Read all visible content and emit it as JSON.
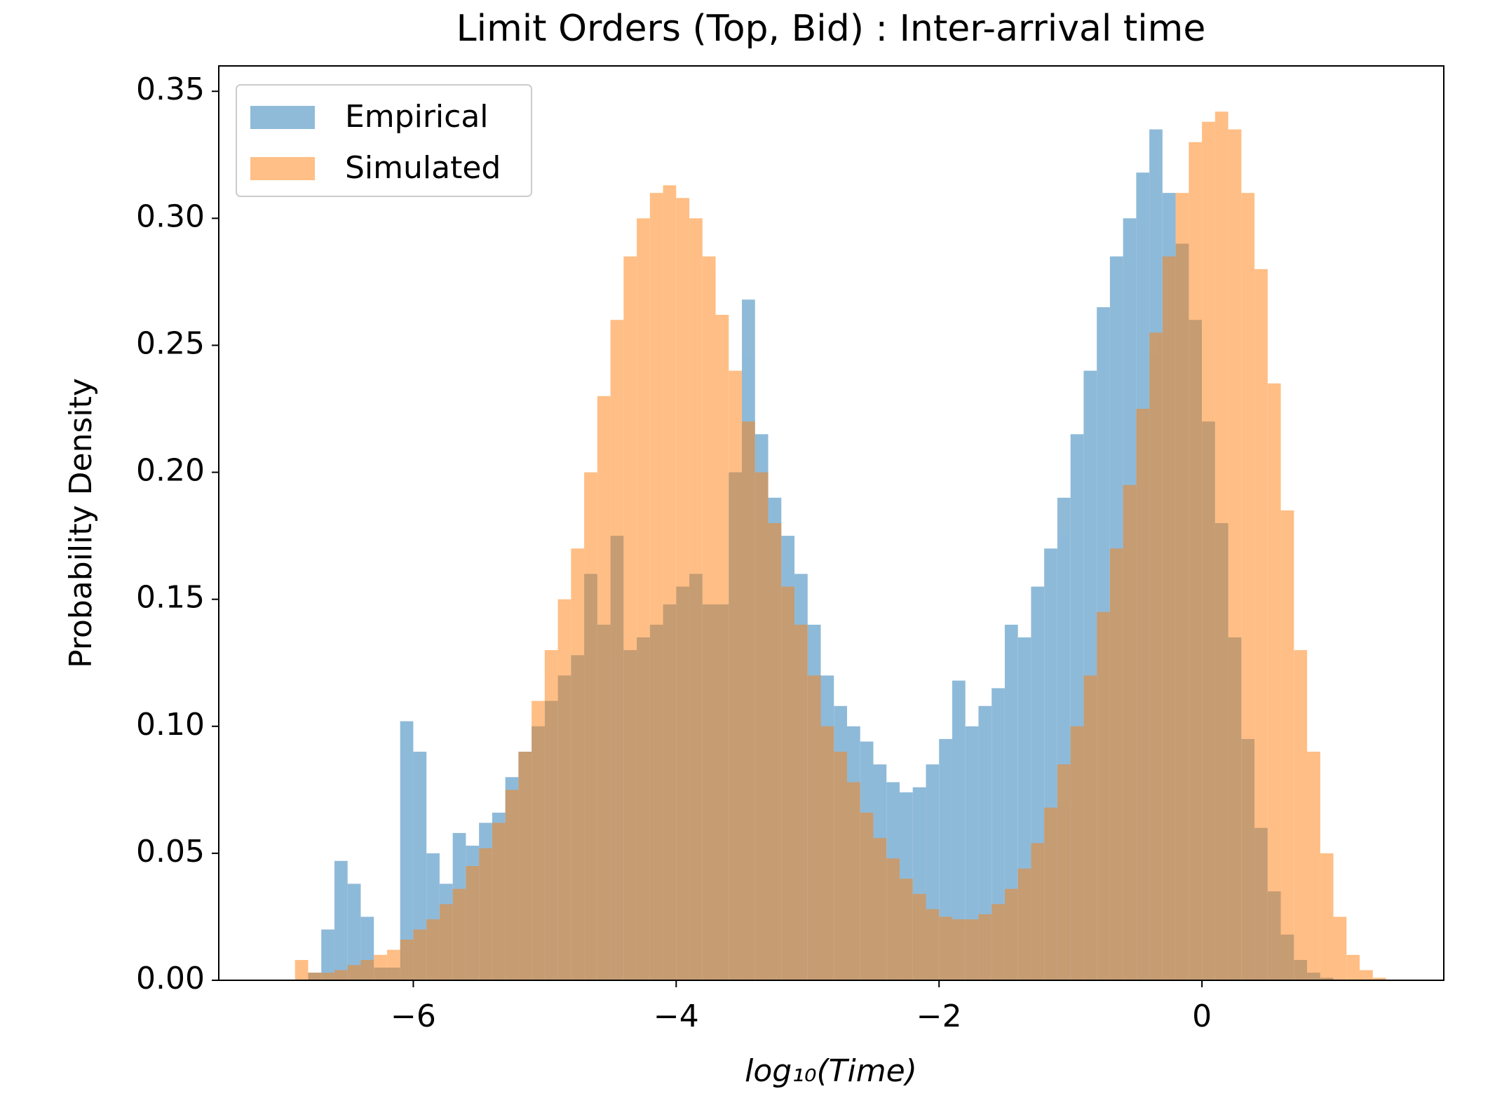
{
  "chart_data": {
    "type": "histogram",
    "title": "Limit Orders (Top, Bid) : Inter-arrival time",
    "x_label": "log₁₀(Time)",
    "y_label": "Probability Density",
    "bins": [
      -7.0,
      -6.9,
      -6.8,
      -6.7,
      -6.6,
      -6.5,
      -6.4,
      -6.3,
      -6.2,
      -6.1,
      -6.0,
      -5.9,
      -5.8,
      -5.7,
      -5.6,
      -5.5,
      -5.4,
      -5.3,
      -5.2,
      -5.1,
      -5.0,
      -4.9,
      -4.8,
      -4.7,
      -4.6,
      -4.5,
      -4.4,
      -4.3,
      -4.2,
      -4.1,
      -4.0,
      -3.9,
      -3.8,
      -3.7,
      -3.6,
      -3.5,
      -3.4,
      -3.3,
      -3.2,
      -3.1,
      -3.0,
      -2.9,
      -2.8,
      -2.7,
      -2.6,
      -2.5,
      -2.4,
      -2.3,
      -2.2,
      -2.1,
      -2.0,
      -1.9,
      -1.8,
      -1.7,
      -1.6,
      -1.5,
      -1.4,
      -1.3,
      -1.2,
      -1.1,
      -1.0,
      -0.9,
      -0.8,
      -0.7,
      -0.6,
      -0.5,
      -0.4,
      -0.3,
      -0.2,
      -0.1,
      0.0,
      0.1,
      0.2,
      0.3,
      0.4,
      0.5,
      0.6,
      0.7,
      0.8,
      0.9,
      1.0,
      1.1,
      1.2,
      1.3,
      1.4
    ],
    "series": [
      {
        "name": "Empirical",
        "color": "#1f77b4",
        "values": [
          0,
          0,
          0.003,
          0.02,
          0.047,
          0.038,
          0.025,
          0.005,
          0.005,
          0.102,
          0.09,
          0.05,
          0.038,
          0.058,
          0.053,
          0.062,
          0.066,
          0.08,
          0.09,
          0.1,
          0.11,
          0.12,
          0.128,
          0.16,
          0.14,
          0.175,
          0.13,
          0.135,
          0.14,
          0.148,
          0.155,
          0.16,
          0.148,
          0.148,
          0.2,
          0.268,
          0.215,
          0.19,
          0.175,
          0.16,
          0.14,
          0.12,
          0.108,
          0.1,
          0.094,
          0.085,
          0.078,
          0.074,
          0.076,
          0.085,
          0.095,
          0.118,
          0.1,
          0.108,
          0.115,
          0.14,
          0.135,
          0.155,
          0.17,
          0.19,
          0.215,
          0.24,
          0.265,
          0.285,
          0.3,
          0.318,
          0.335,
          0.31,
          0.29,
          0.26,
          0.22,
          0.18,
          0.135,
          0.095,
          0.06,
          0.035,
          0.018,
          0.008,
          0.003,
          0.001,
          0,
          0,
          0,
          0
        ]
      },
      {
        "name": "Simulated",
        "color": "#ff7f0e",
        "values": [
          0,
          0.008,
          0.003,
          0.003,
          0.004,
          0.006,
          0.008,
          0.01,
          0.012,
          0.016,
          0.02,
          0.024,
          0.03,
          0.036,
          0.045,
          0.052,
          0.062,
          0.075,
          0.09,
          0.11,
          0.13,
          0.15,
          0.17,
          0.2,
          0.23,
          0.26,
          0.285,
          0.3,
          0.31,
          0.313,
          0.308,
          0.3,
          0.285,
          0.262,
          0.24,
          0.22,
          0.2,
          0.18,
          0.155,
          0.14,
          0.12,
          0.1,
          0.09,
          0.078,
          0.066,
          0.056,
          0.048,
          0.04,
          0.034,
          0.028,
          0.025,
          0.024,
          0.024,
          0.026,
          0.03,
          0.036,
          0.044,
          0.054,
          0.068,
          0.085,
          0.1,
          0.12,
          0.145,
          0.17,
          0.195,
          0.225,
          0.255,
          0.285,
          0.31,
          0.33,
          0.338,
          0.342,
          0.335,
          0.31,
          0.28,
          0.235,
          0.185,
          0.13,
          0.09,
          0.05,
          0.025,
          0.01,
          0.004,
          0.001
        ]
      }
    ],
    "opacity": 0.5,
    "xlim": [
      -7.48,
      1.84
    ],
    "ylim": [
      0,
      0.36
    ],
    "xticks": [
      {
        "value": -6,
        "label": "−6"
      },
      {
        "value": -4,
        "label": "−4"
      },
      {
        "value": -2,
        "label": "−2"
      },
      {
        "value": 0,
        "label": "0"
      }
    ],
    "yticks": [
      {
        "value": 0,
        "label": "0.00"
      },
      {
        "value": 0.05,
        "label": "0.05"
      },
      {
        "value": 0.1,
        "label": "0.10"
      },
      {
        "value": 0.15,
        "label": "0.15"
      },
      {
        "value": 0.2,
        "label": "0.20"
      },
      {
        "value": 0.25,
        "label": "0.25"
      },
      {
        "value": 0.3,
        "label": "0.30"
      },
      {
        "value": 0.35,
        "label": "0.35"
      }
    ],
    "grid": false,
    "legend": "upper left"
  }
}
